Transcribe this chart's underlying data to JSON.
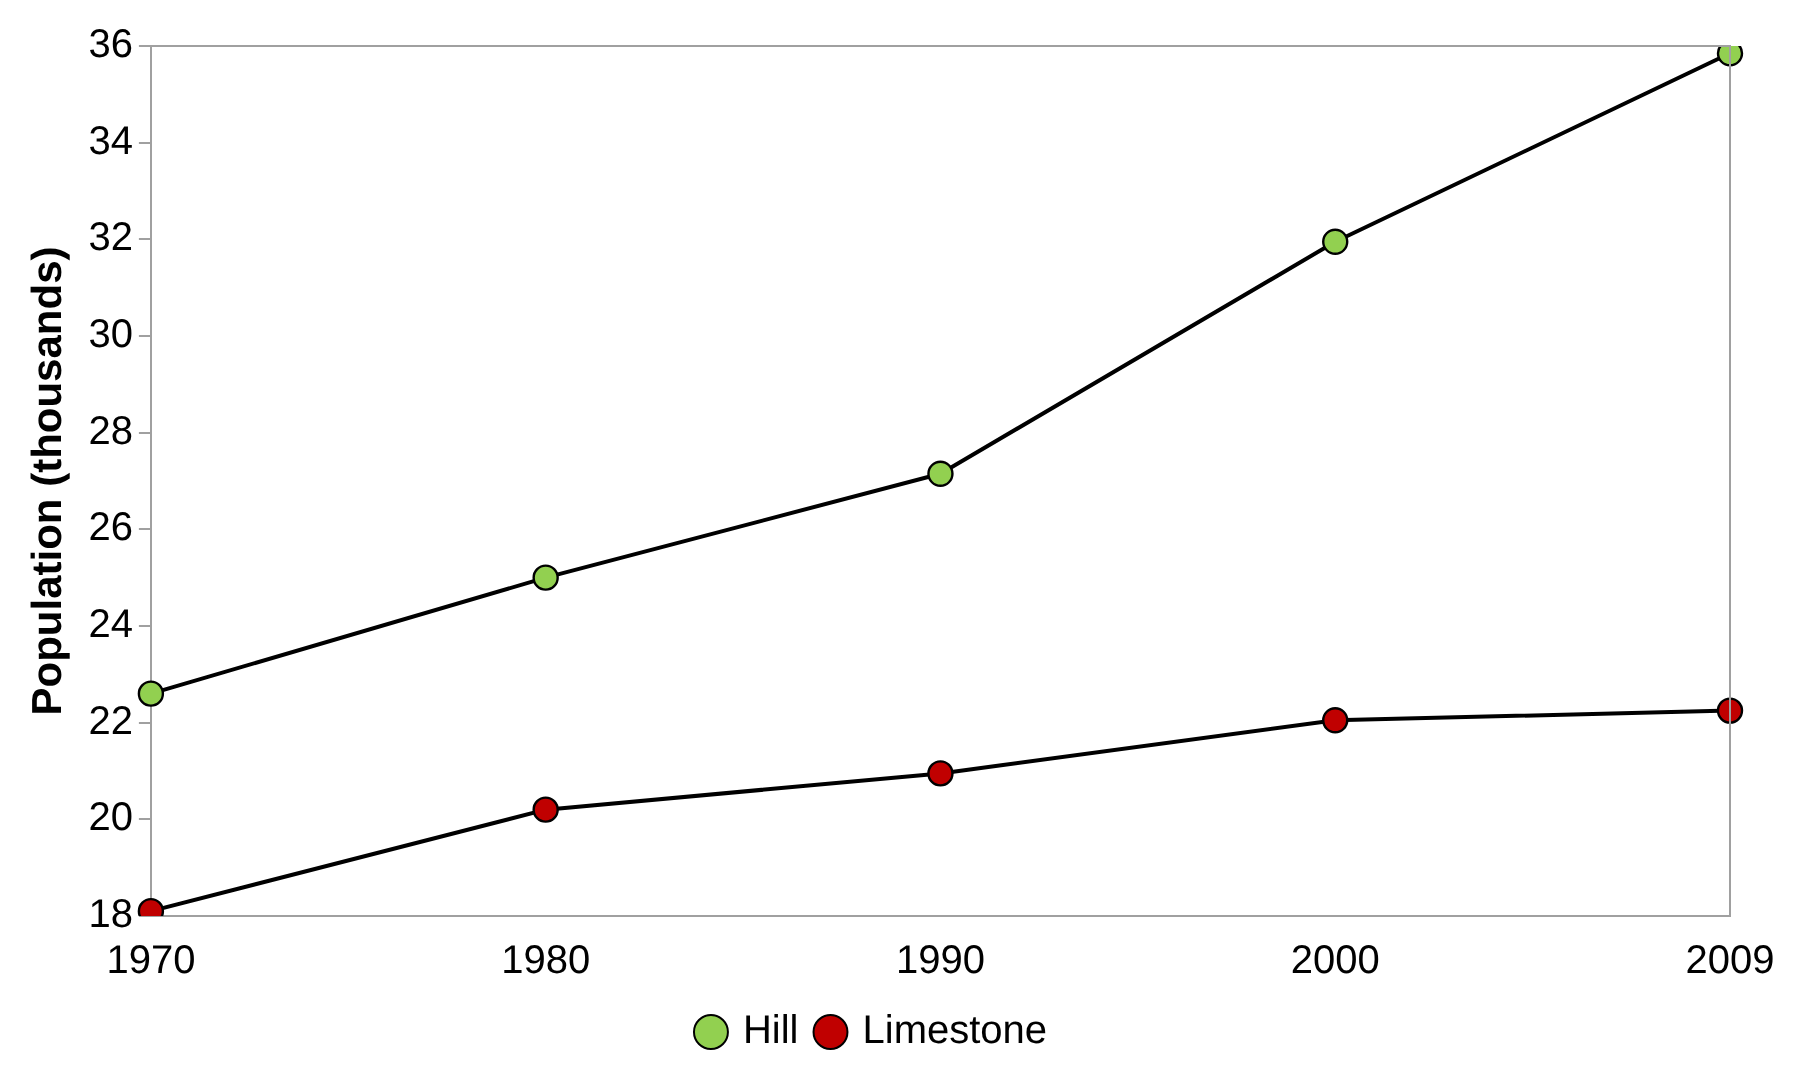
{
  "chart_data": {
    "type": "line",
    "ylabel": "Population (thousands)",
    "categories": [
      "1970",
      "1980",
      "1990",
      "2000",
      "2009"
    ],
    "series": [
      {
        "name": "Hill",
        "color": "#92d050",
        "values": [
          22.6,
          25.0,
          27.15,
          31.95,
          35.85
        ]
      },
      {
        "name": "Limestone",
        "color": "#c00000",
        "values": [
          18.1,
          20.2,
          20.95,
          22.05,
          22.25
        ]
      }
    ],
    "ylim": [
      18,
      36
    ],
    "yticks": [
      18,
      20,
      22,
      24,
      26,
      28,
      30,
      32,
      34,
      36
    ],
    "grid": false,
    "legend": "bottom",
    "marker": "circle",
    "line_style": "solid"
  }
}
